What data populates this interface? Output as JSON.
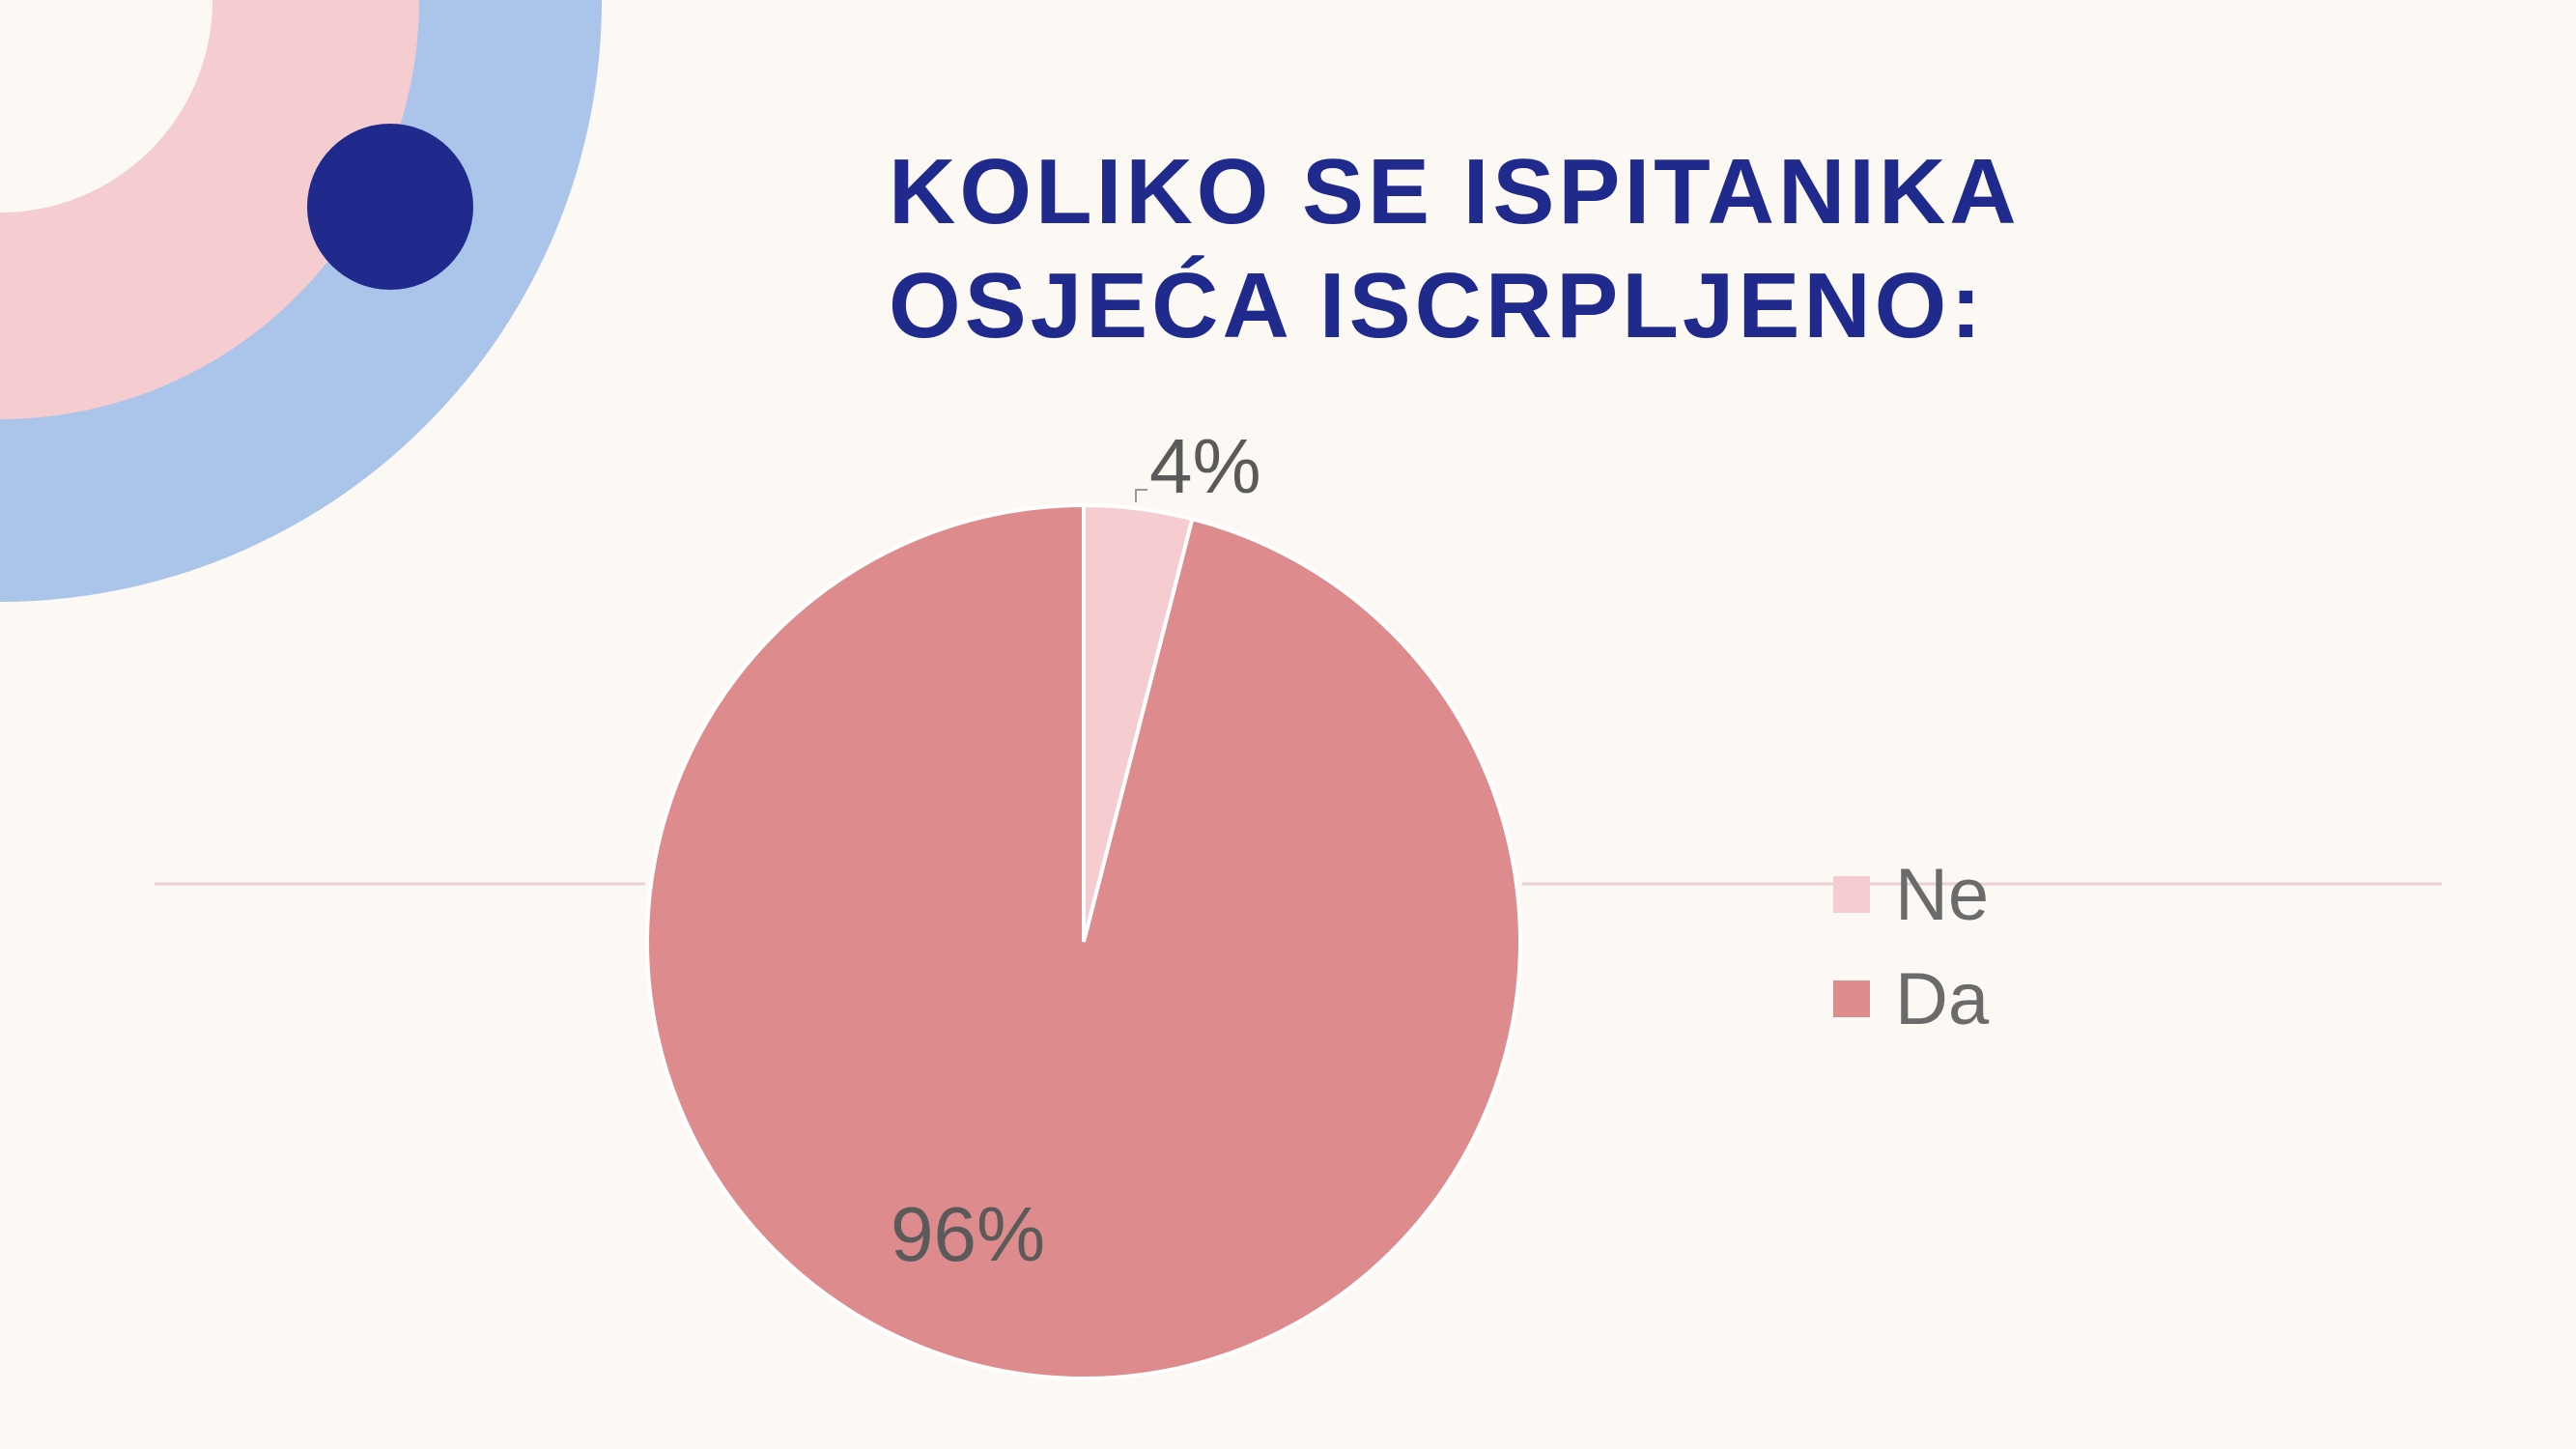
{
  "slide": {
    "title_lines": [
      "KOLIKO SE ISPITANIKA",
      "OSJEĆA ISCRPLJENO:"
    ]
  },
  "colors": {
    "background": "#fcf9f5",
    "title": "#1f2a8c",
    "ring_outer": "#aac4ea",
    "ring_inner": "#f5cdd1",
    "dot": "#1f2a8c",
    "slice_ne": "#f5cdd1",
    "slice_da": "#de8b8d",
    "label_text": "#5a5a5a",
    "divider": "#ebd0d3"
  },
  "chart_data": {
    "type": "pie",
    "categories": [
      "Ne",
      "Da"
    ],
    "values": [
      4,
      96
    ],
    "value_labels": [
      "4%",
      "96%"
    ],
    "legend_position": "right"
  }
}
